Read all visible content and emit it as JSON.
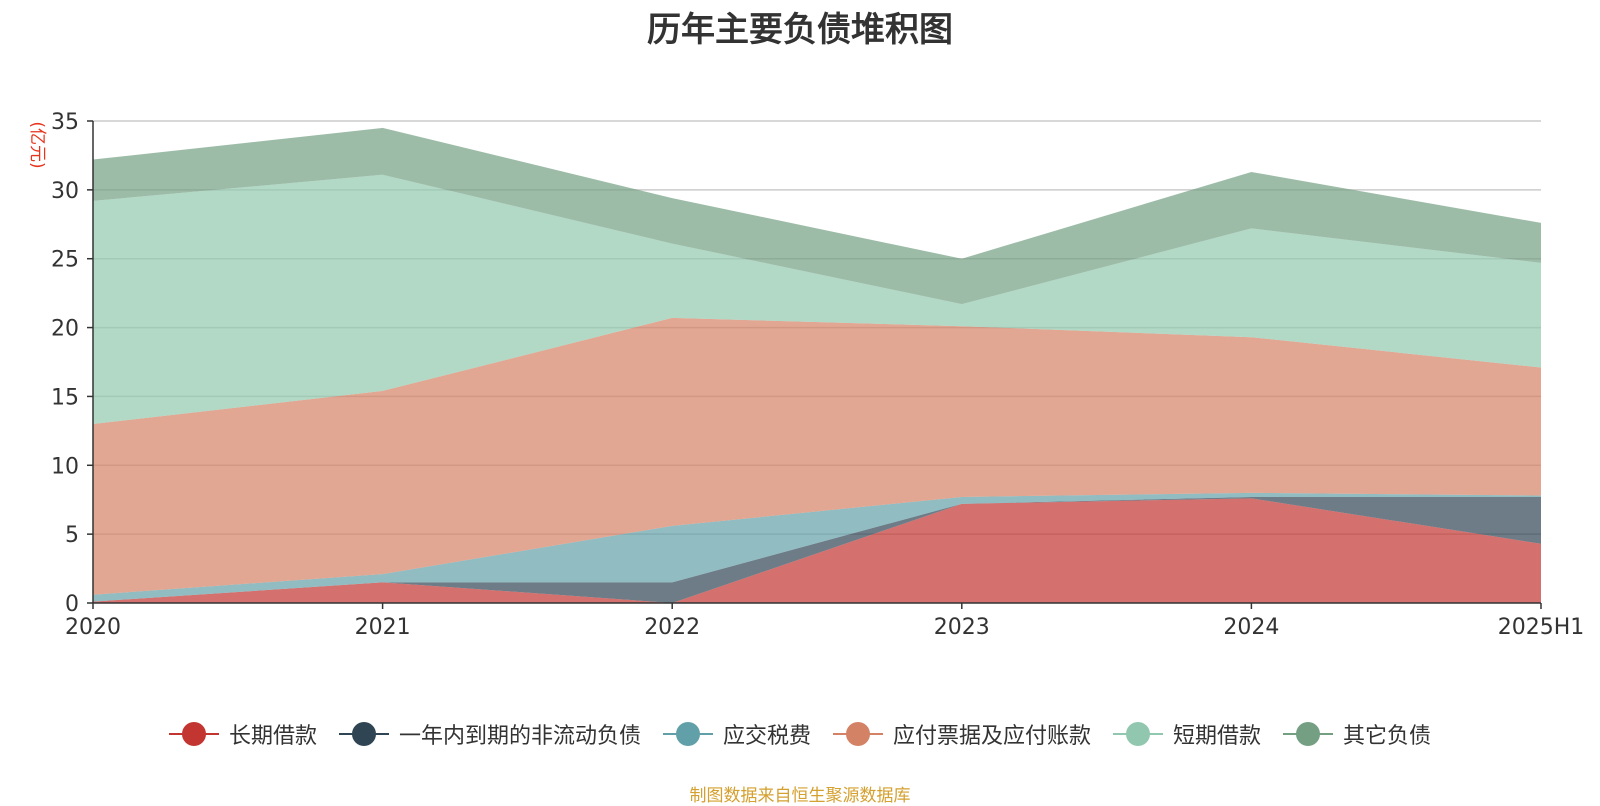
{
  "chart_data": {
    "type": "area",
    "stacked": true,
    "title": "历年主要负债堆积图",
    "ylabel": "(亿元)",
    "categories": [
      "2020",
      "2021",
      "2022",
      "2023",
      "2024",
      "2025H1"
    ],
    "ylim": [
      0,
      35
    ],
    "yticks": [
      0,
      5,
      10,
      15,
      20,
      25,
      30,
      35
    ],
    "grid": true,
    "legend_position": "bottom",
    "series": [
      {
        "name": "长期借款",
        "values": [
          0.1,
          1.5,
          0.0,
          7.2,
          7.6,
          4.3
        ],
        "color": "#c23531"
      },
      {
        "name": "一年内到期的非流动负债",
        "values": [
          0.0,
          0.0,
          1.5,
          0.0,
          0.1,
          3.4
        ],
        "color": "#2f4554"
      },
      {
        "name": "应交税费",
        "values": [
          0.5,
          0.6,
          4.1,
          0.5,
          0.3,
          0.1
        ],
        "color": "#61a0a8"
      },
      {
        "name": "应付票据及应付账款",
        "values": [
          12.4,
          13.3,
          15.1,
          12.4,
          11.3,
          9.3
        ],
        "color": "#d48265"
      },
      {
        "name": "短期借款",
        "values": [
          16.2,
          15.7,
          5.4,
          1.6,
          7.9,
          7.6
        ],
        "color": "#91c7ae"
      },
      {
        "name": "其它负债",
        "values": [
          3.0,
          3.4,
          3.3,
          3.3,
          4.1,
          2.9
        ],
        "color": "#749f83"
      }
    ]
  },
  "source_note": "制图数据来自恒生聚源数据库"
}
